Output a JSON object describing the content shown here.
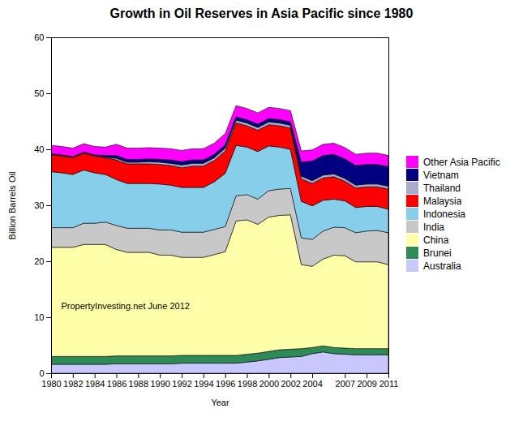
{
  "chart_data": {
    "type": "area",
    "stacked": true,
    "title": "Growth in Oil Reserves in Asia Pacific since 1980",
    "xlabel": "Year",
    "ylabel": "Billion Barrels Oil",
    "annotations": [
      "PropertyInvesting.net June 2012"
    ],
    "x": [
      1980,
      1981,
      1982,
      1983,
      1984,
      1985,
      1986,
      1987,
      1988,
      1989,
      1990,
      1991,
      1992,
      1993,
      1994,
      1995,
      1996,
      1997,
      1998,
      1999,
      2000,
      2001,
      2002,
      2003,
      2004,
      2005,
      2006,
      2007,
      2008,
      2009,
      2010,
      2011
    ],
    "series": [
      {
        "name": "Australia",
        "color": "#c8c8ff",
        "values": [
          1.6,
          1.6,
          1.6,
          1.6,
          1.6,
          1.6,
          1.7,
          1.7,
          1.7,
          1.7,
          1.7,
          1.7,
          1.8,
          1.8,
          1.8,
          1.8,
          1.8,
          1.8,
          2.0,
          2.2,
          2.5,
          2.8,
          2.9,
          3.0,
          3.5,
          3.8,
          3.5,
          3.4,
          3.3,
          3.3,
          3.3,
          3.3
        ]
      },
      {
        "name": "Brunei",
        "color": "#2e8b57",
        "values": [
          1.4,
          1.4,
          1.4,
          1.4,
          1.4,
          1.4,
          1.4,
          1.4,
          1.4,
          1.4,
          1.4,
          1.4,
          1.4,
          1.4,
          1.4,
          1.4,
          1.4,
          1.4,
          1.4,
          1.4,
          1.4,
          1.4,
          1.4,
          1.4,
          1.1,
          1.1,
          1.1,
          1.1,
          1.1,
          1.1,
          1.1,
          1.1
        ]
      },
      {
        "name": "China",
        "color": "#ffffaa",
        "values": [
          19.5,
          19.5,
          19.5,
          20.0,
          20.0,
          20.0,
          19.0,
          18.5,
          18.5,
          18.5,
          18.0,
          18.0,
          17.5,
          17.5,
          17.5,
          18.0,
          18.5,
          24.0,
          24.0,
          23.0,
          24.0,
          24.0,
          24.0,
          15.0,
          14.5,
          15.5,
          16.5,
          16.5,
          15.5,
          15.5,
          15.5,
          15.0
        ]
      },
      {
        "name": "India",
        "color": "#c8c8c8",
        "values": [
          3.5,
          3.5,
          3.5,
          3.8,
          3.8,
          4.0,
          4.3,
          4.3,
          4.3,
          4.3,
          4.5,
          4.5,
          4.5,
          4.5,
          4.5,
          4.5,
          4.5,
          4.5,
          4.5,
          4.5,
          4.7,
          4.7,
          4.7,
          4.8,
          4.8,
          5.0,
          5.0,
          5.0,
          5.2,
          5.5,
          5.6,
          5.7
        ]
      },
      {
        "name": "Indonesia",
        "color": "#87ceeb",
        "values": [
          10.0,
          9.8,
          9.5,
          9.5,
          9.0,
          8.5,
          8.2,
          8.0,
          8.0,
          8.0,
          8.2,
          8.0,
          8.0,
          8.0,
          8.0,
          8.5,
          9.5,
          9.0,
          8.5,
          8.5,
          8.0,
          7.5,
          7.0,
          6.5,
          6.0,
          5.5,
          5.0,
          4.8,
          4.5,
          4.4,
          4.3,
          4.2
        ]
      },
      {
        "name": "Malaysia",
        "color": "#ff0000",
        "values": [
          3.0,
          3.0,
          3.0,
          3.0,
          3.0,
          3.0,
          3.5,
          3.5,
          3.5,
          3.5,
          3.5,
          3.5,
          3.5,
          3.8,
          3.8,
          3.8,
          4.0,
          4.0,
          3.8,
          3.8,
          3.8,
          3.8,
          3.8,
          4.0,
          4.0,
          4.0,
          4.0,
          3.5,
          3.5,
          3.5,
          3.5,
          3.6
        ]
      },
      {
        "name": "Thailand",
        "color": "#aaaacc",
        "values": [
          0.1,
          0.1,
          0.1,
          0.1,
          0.1,
          0.1,
          0.3,
          0.3,
          0.3,
          0.4,
          0.4,
          0.4,
          0.5,
          0.5,
          0.5,
          0.5,
          0.5,
          0.5,
          0.5,
          0.5,
          0.5,
          0.5,
          0.5,
          0.5,
          0.5,
          0.5,
          0.5,
          0.5,
          0.5,
          0.5,
          0.5,
          0.5
        ]
      },
      {
        "name": "Vietnam",
        "color": "#000080",
        "values": [
          0.1,
          0.1,
          0.1,
          0.1,
          0.1,
          0.3,
          0.5,
          0.5,
          0.5,
          0.5,
          0.5,
          0.6,
          0.6,
          0.6,
          0.6,
          0.6,
          0.6,
          0.6,
          0.6,
          0.6,
          0.6,
          0.6,
          0.6,
          2.5,
          3.5,
          3.5,
          3.5,
          3.5,
          3.5,
          3.5,
          3.5,
          3.5
        ]
      },
      {
        "name": "Other Asia Pacific",
        "color": "#ff00ff",
        "values": [
          1.5,
          1.5,
          1.5,
          1.5,
          1.5,
          1.5,
          2.0,
          2.0,
          2.0,
          2.0,
          2.0,
          2.0,
          2.0,
          2.0,
          2.0,
          2.0,
          2.0,
          2.0,
          2.0,
          2.0,
          2.0,
          2.0,
          2.0,
          2.0,
          2.0,
          2.0,
          2.0,
          2.0,
          2.0,
          2.0,
          2.0,
          2.0
        ]
      }
    ],
    "xlim": [
      1980,
      2011
    ],
    "ylim": [
      0,
      60
    ],
    "xticks": [
      1980,
      1982,
      1984,
      1986,
      1988,
      1990,
      1992,
      1994,
      1996,
      1998,
      2000,
      2002,
      2004,
      2007,
      2009,
      2011
    ],
    "yticks": [
      0,
      10,
      20,
      30,
      40,
      50,
      60
    ],
    "legend": "right",
    "grid": false
  }
}
